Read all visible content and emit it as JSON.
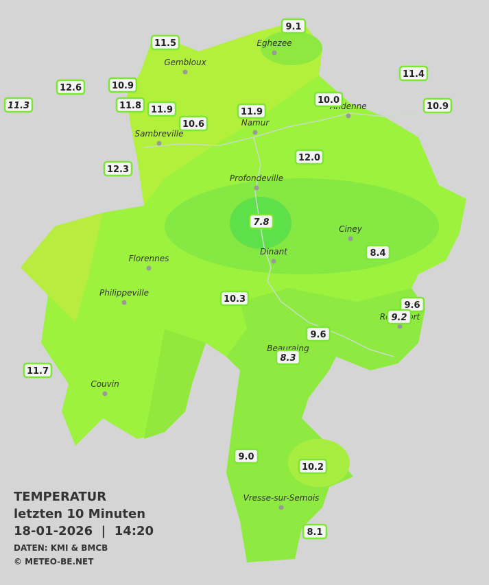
{
  "legend": {
    "title": "TEMPERATUR",
    "subtitle": "letzten 10 Minuten",
    "datetime": "18-01-2026  |  14:20",
    "source": "DATEN: KMI & BMCB",
    "copyright": "© METEO-BE.NET"
  },
  "towns": [
    "Eghezee",
    "Gembloux",
    "Andenne",
    "Namur",
    "Sambreville",
    "Profondeville",
    "Ciney",
    "Dinant",
    "Florennes",
    "Philippeville",
    "Rochefort",
    "Beauraing",
    "Couvin",
    "Vresse-sur-Semois"
  ],
  "stations": [
    "9.1",
    "11.5",
    "11.4",
    "12.6",
    "10.9",
    "11.3",
    "11.8",
    "11.9",
    "10.0",
    "10.9",
    "10.6",
    "11.9",
    "12.0",
    "12.3",
    "7.8",
    "8.4",
    "10.3",
    "9.6",
    "9.2",
    "9.6",
    "8.3",
    "11.7",
    "9.0",
    "10.2",
    "8.1"
  ]
}
